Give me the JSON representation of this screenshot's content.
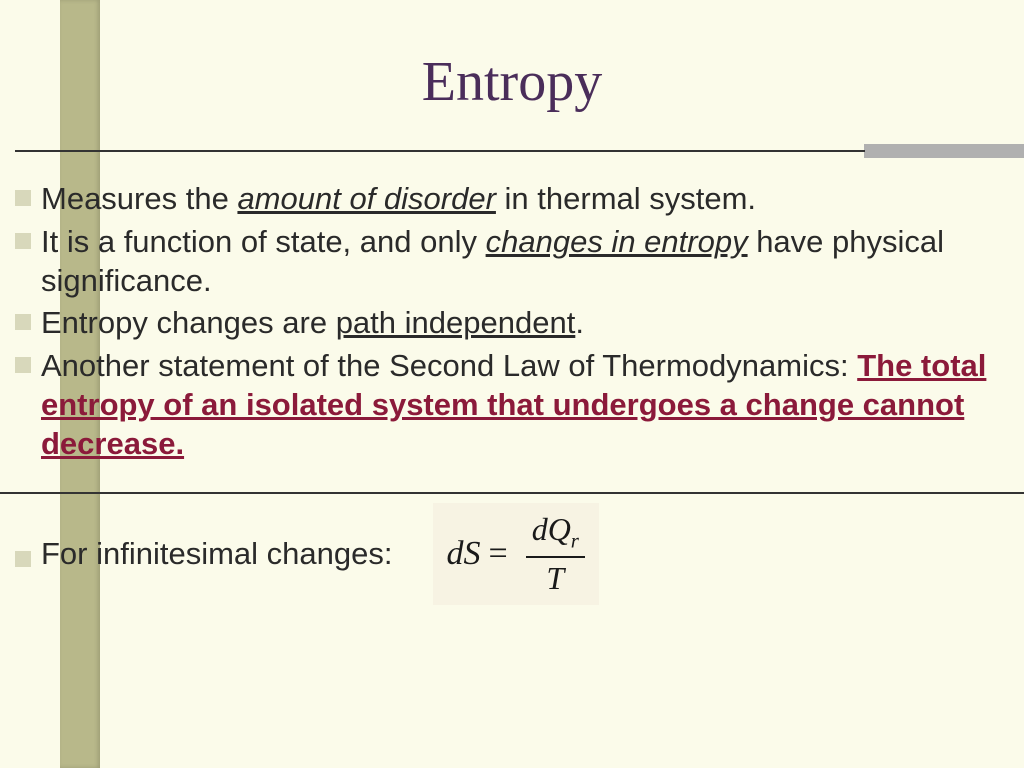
{
  "slide": {
    "title": "Entropy",
    "colors": {
      "background": "#fbfbea",
      "left_bar": "#b8b88a",
      "right_accent": "#b0b0b0",
      "title_color": "#4a2d5a",
      "bullet_color": "#d8d8bb",
      "text_color": "#2a2a2a",
      "emphasis_color": "#8b1a3a",
      "divider_color": "#333333",
      "formula_bg": "#f7f3e3"
    },
    "typography": {
      "title_font": "Times New Roman",
      "title_size_pt": 42,
      "body_font": "Arial",
      "body_size_pt": 23
    },
    "bullets": [
      {
        "parts": [
          {
            "t": "Measures the ",
            "style": "plain"
          },
          {
            "t": "amount of disorder",
            "style": "u-italic"
          },
          {
            "t": " in thermal system.",
            "style": "plain"
          }
        ]
      },
      {
        "parts": [
          {
            "t": "It is a function of state, and only ",
            "style": "plain"
          },
          {
            "t": "changes in entropy",
            "style": "u-italic"
          },
          {
            "t": " have physical significance.",
            "style": "plain"
          }
        ]
      },
      {
        "parts": [
          {
            "t": "Entropy changes are ",
            "style": "plain"
          },
          {
            "t": "path independent",
            "style": "u"
          },
          {
            "t": ".",
            "style": "plain"
          }
        ]
      },
      {
        "parts": [
          {
            "t": "Another statement of the Second Law of Thermodynamics: ",
            "style": "plain"
          },
          {
            "t": "The total entropy of an isolated system that undergoes a change cannot decrease.",
            "style": "em-red"
          }
        ]
      }
    ],
    "final_bullet_text": "For infinitesimal changes:",
    "formula": {
      "lhs": "dS",
      "eq": "=",
      "numerator": "dQ",
      "numerator_sub": "r",
      "denominator": "T"
    }
  }
}
